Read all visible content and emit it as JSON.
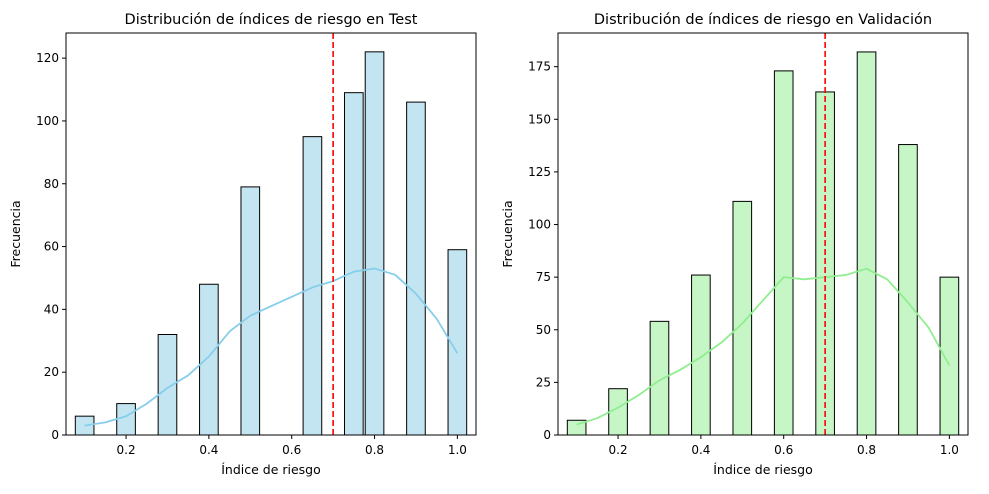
{
  "chart_data": [
    {
      "type": "bar",
      "title": "Distribución de índices de riesgo en Test",
      "xlabel": "Índice de riesgo",
      "ylabel": "Frecuencia",
      "xlim": [
        0.055,
        1.045
      ],
      "ylim": [
        0,
        128
      ],
      "xticks": [
        0.2,
        0.4,
        0.6,
        0.8,
        1.0
      ],
      "xtick_labels": [
        "0.2",
        "0.4",
        "0.6",
        "0.8",
        "1.0"
      ],
      "yticks": [
        0,
        20,
        40,
        60,
        80,
        100,
        120
      ],
      "ytick_labels": [
        "0",
        "20",
        "40",
        "60",
        "80",
        "100",
        "120"
      ],
      "bin_width": 0.045,
      "bins": [
        {
          "x": 0.1,
          "value": 6
        },
        {
          "x": 0.2,
          "value": 10
        },
        {
          "x": 0.3,
          "value": 32
        },
        {
          "x": 0.4,
          "value": 48
        },
        {
          "x": 0.5,
          "value": 79
        },
        {
          "x": 0.6,
          "value": 0
        },
        {
          "x": 0.65,
          "value": 95
        },
        {
          "x": 0.75,
          "value": 109
        },
        {
          "x": 0.8,
          "value": 122
        },
        {
          "x": 0.9,
          "value": 106
        },
        {
          "x": 1.0,
          "value": 59
        }
      ],
      "bar_color": "#c3e5f1",
      "kde": {
        "color": "#87ceeb",
        "x": [
          0.1,
          0.15,
          0.2,
          0.25,
          0.3,
          0.35,
          0.4,
          0.45,
          0.5,
          0.55,
          0.6,
          0.65,
          0.7,
          0.75,
          0.8,
          0.85,
          0.9,
          0.95,
          1.0
        ],
        "y": [
          3,
          4,
          6,
          10,
          15,
          19,
          25,
          33,
          38,
          41,
          44,
          47,
          49,
          52,
          53,
          51,
          45,
          37,
          26
        ]
      },
      "vline": {
        "x": 0.7,
        "color": "#ff0000",
        "style": "dashed"
      },
      "grid": false,
      "legend": "none"
    },
    {
      "type": "bar",
      "title": "Distribución de índices de riesgo en Validación",
      "xlabel": "Índice de riesgo",
      "ylabel": "Frecuencia",
      "xlim": [
        0.055,
        1.045
      ],
      "ylim": [
        0,
        191
      ],
      "xticks": [
        0.2,
        0.4,
        0.6,
        0.8,
        1.0
      ],
      "xtick_labels": [
        "0.2",
        "0.4",
        "0.6",
        "0.8",
        "1.0"
      ],
      "yticks": [
        0,
        25,
        50,
        75,
        100,
        125,
        150,
        175
      ],
      "ytick_labels": [
        "0",
        "25",
        "50",
        "75",
        "100",
        "125",
        "150",
        "175"
      ],
      "bin_width": 0.045,
      "bins": [
        {
          "x": 0.1,
          "value": 7
        },
        {
          "x": 0.2,
          "value": 22
        },
        {
          "x": 0.3,
          "value": 54
        },
        {
          "x": 0.4,
          "value": 76
        },
        {
          "x": 0.5,
          "value": 111
        },
        {
          "x": 0.6,
          "value": 173
        },
        {
          "x": 0.7,
          "value": 163
        },
        {
          "x": 0.8,
          "value": 182
        },
        {
          "x": 0.9,
          "value": 138
        },
        {
          "x": 1.0,
          "value": 75
        }
      ],
      "bar_color": "#c6f5c6",
      "kde": {
        "color": "#90ee90",
        "x": [
          0.1,
          0.15,
          0.2,
          0.25,
          0.3,
          0.35,
          0.4,
          0.45,
          0.5,
          0.55,
          0.6,
          0.65,
          0.7,
          0.75,
          0.8,
          0.85,
          0.9,
          0.95,
          1.0
        ],
        "y": [
          5,
          8,
          13,
          19,
          26,
          31,
          37,
          44,
          53,
          64,
          75,
          74,
          75,
          76,
          79,
          74,
          63,
          51,
          33
        ]
      },
      "vline": {
        "x": 0.7,
        "color": "#ff0000",
        "style": "dashed"
      },
      "grid": false,
      "legend": "none"
    }
  ]
}
